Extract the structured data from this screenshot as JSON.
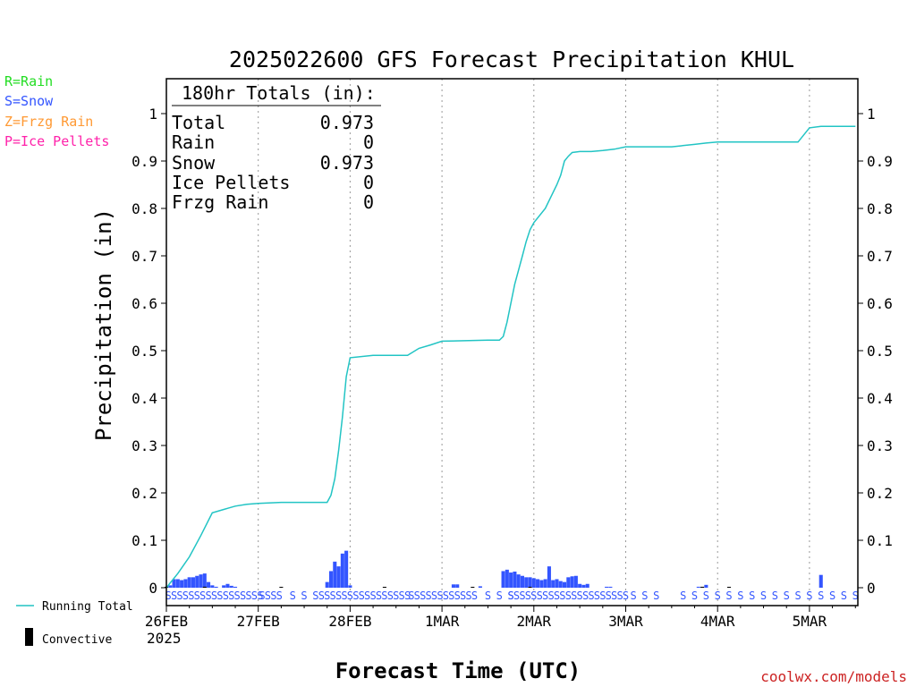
{
  "chart_data": {
    "type": "bar",
    "title": "2025022600 GFS Forecast Precipitation KHUL",
    "xlabel": "Forecast Time (UTC)",
    "ylabel": "Precipitation (in)",
    "ylim": [
      0,
      1.0
    ],
    "y_ticks": [
      "0",
      "0.1",
      "0.2",
      "0.3",
      "0.4",
      "0.5",
      "0.6",
      "0.7",
      "0.8",
      "0.9",
      "1"
    ],
    "x_ticks": [
      "26FEB",
      "27FEB",
      "28FEB",
      "1MAR",
      "2MAR",
      "3MAR",
      "4MAR",
      "5MAR"
    ],
    "x_year": "2025",
    "grid": "vertical dotted at day boundaries",
    "legend_left": [
      {
        "label": "R=Rain",
        "color": "#22dd22"
      },
      {
        "label": "S=Snow",
        "color": "#3355ff"
      },
      {
        "label": "Z=Frzg Rain",
        "color": "#ff9933"
      },
      {
        "label": "P=Ice Pellets",
        "color": "#ff22aa"
      }
    ],
    "legend_bottom": [
      {
        "label": "Running Total",
        "color": "#22c4c4",
        "kind": "line"
      },
      {
        "label": "Convective",
        "color": "#000000",
        "kind": "bar"
      }
    ],
    "totals_box": {
      "header": "180hr Totals (in):",
      "rows": [
        {
          "label": "Total",
          "value": "0.973"
        },
        {
          "label": "Rain",
          "value": "0"
        },
        {
          "label": "Snow",
          "value": "0.973"
        },
        {
          "label": "Ice Pellets",
          "value": "0"
        },
        {
          "label": "Frzg Rain",
          "value": "0"
        }
      ]
    },
    "credit": "coolwx.com/models",
    "running_total": {
      "name": "Running Total",
      "color": "#22c4c4",
      "x_hours": [
        0,
        3,
        6,
        9,
        12,
        15,
        18,
        21,
        24,
        30,
        36,
        40,
        42,
        43,
        44,
        45,
        46,
        47,
        48,
        54,
        60,
        63,
        66,
        69,
        72,
        84,
        87,
        88,
        89,
        90,
        91,
        92,
        93,
        94,
        95,
        96,
        99,
        102,
        103,
        104,
        105,
        106,
        108,
        111,
        114,
        117,
        120,
        126,
        132,
        138,
        141,
        144,
        147,
        150,
        156,
        162,
        165,
        168,
        171,
        174,
        180
      ],
      "values": [
        0,
        0.03,
        0.065,
        0.11,
        0.158,
        0.165,
        0.172,
        0.176,
        0.178,
        0.18,
        0.18,
        0.18,
        0.18,
        0.195,
        0.23,
        0.29,
        0.36,
        0.445,
        0.485,
        0.49,
        0.49,
        0.49,
        0.505,
        0.512,
        0.52,
        0.522,
        0.522,
        0.53,
        0.56,
        0.6,
        0.64,
        0.67,
        0.7,
        0.73,
        0.755,
        0.77,
        0.8,
        0.85,
        0.87,
        0.9,
        0.91,
        0.918,
        0.92,
        0.92,
        0.922,
        0.925,
        0.93,
        0.93,
        0.93,
        0.935,
        0.938,
        0.94,
        0.94,
        0.94,
        0.94,
        0.94,
        0.94,
        0.97,
        0.973,
        0.973,
        0.973
      ]
    },
    "series": [
      {
        "name": "Snow",
        "color": "#3355ff",
        "x_hours": [
          1,
          2,
          3,
          4,
          5,
          6,
          7,
          8,
          9,
          10,
          11,
          12,
          13,
          15,
          16,
          17,
          18,
          42,
          43,
          44,
          45,
          46,
          47,
          48,
          75,
          76,
          82,
          88,
          89,
          90,
          91,
          92,
          93,
          94,
          95,
          96,
          97,
          98,
          99,
          100,
          101,
          102,
          103,
          104,
          105,
          106,
          107,
          108,
          109,
          110,
          115,
          116,
          139,
          141,
          171
        ],
        "values": [
          0.005,
          0.018,
          0.018,
          0.016,
          0.018,
          0.022,
          0.022,
          0.025,
          0.028,
          0.03,
          0.012,
          0.005,
          0.002,
          0.005,
          0.008,
          0.004,
          0.002,
          0.012,
          0.035,
          0.055,
          0.045,
          0.072,
          0.078,
          0.005,
          0.007,
          0.007,
          0.003,
          0.035,
          0.038,
          0.032,
          0.034,
          0.028,
          0.025,
          0.022,
          0.022,
          0.02,
          0.018,
          0.016,
          0.018,
          0.045,
          0.016,
          0.018,
          0.014,
          0.012,
          0.022,
          0.024,
          0.025,
          0.008,
          0.006,
          0.008,
          0.002,
          0.002,
          0.002,
          0.006,
          0.027
        ]
      },
      {
        "name": "Convective",
        "color": "#000000",
        "x_hours": [
          0,
          10,
          30,
          57,
          80,
          95,
          140,
          147
        ],
        "values": [
          0.002,
          0.002,
          0.001,
          0.001,
          0.001,
          0.001,
          0.002,
          0.001
        ]
      }
    ],
    "precip_type_strip": {
      "color": "#3355ff",
      "symbol": "S",
      "runs": [
        {
          "from": 0.5,
          "to": 24.5,
          "step": 1.5
        },
        {
          "from": 25,
          "to": 30,
          "step": 1.5
        },
        {
          "from": 33,
          "to": 37,
          "step": 3
        },
        {
          "from": 39,
          "to": 64,
          "step": 1.5
        },
        {
          "from": 64,
          "to": 81,
          "step": 1.5
        },
        {
          "from": 84,
          "to": 90,
          "step": 3
        },
        {
          "from": 90,
          "to": 120,
          "step": 1.5
        },
        {
          "from": 122,
          "to": 130,
          "step": 3
        },
        {
          "from": 135,
          "to": 180,
          "step": 3
        }
      ]
    }
  }
}
